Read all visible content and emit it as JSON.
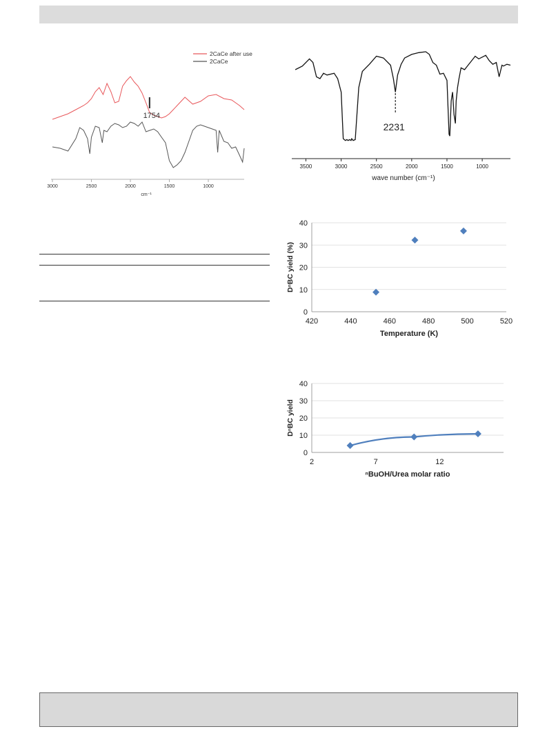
{
  "chart_data": [
    {
      "type": "line",
      "panel": "ftir-catalyst",
      "series": [
        {
          "name": "2CaCe after use",
          "color": "#e8575a",
          "x": [
            3000,
            2900,
            2800,
            2700,
            2600,
            2550,
            2500,
            2450,
            2400,
            2350,
            2300,
            2250,
            2200,
            2150,
            2100,
            2050,
            2000,
            1950,
            1900,
            1850,
            1800,
            1754,
            1700,
            1650,
            1600,
            1550,
            1500,
            1450,
            1400,
            1300,
            1200,
            1100,
            1000,
            900,
            800,
            700,
            600,
            540
          ],
          "y": [
            4.6,
            4.8,
            5.0,
            5.3,
            5.6,
            5.8,
            6.1,
            6.6,
            6.9,
            6.4,
            7.2,
            6.6,
            5.8,
            5.9,
            7.0,
            7.4,
            7.7,
            7.3,
            7.0,
            6.5,
            5.8,
            5.1,
            4.9,
            4.8,
            4.7,
            4.8,
            5.0,
            5.3,
            5.6,
            6.2,
            5.7,
            5.9,
            6.3,
            6.4,
            6.1,
            6.0,
            5.6,
            5.3
          ]
        },
        {
          "name": "2CaCe",
          "color": "#555555",
          "x": [
            3000,
            2900,
            2800,
            2700,
            2650,
            2600,
            2550,
            2520,
            2500,
            2450,
            2400,
            2360,
            2340,
            2300,
            2250,
            2200,
            2150,
            2100,
            2050,
            2000,
            1950,
            1900,
            1850,
            1800,
            1750,
            1700,
            1650,
            1600,
            1550,
            1500,
            1450,
            1400,
            1350,
            1300,
            1250,
            1200,
            1150,
            1100,
            1050,
            1000,
            950,
            900,
            880,
            860,
            800,
            750,
            700,
            650,
            600,
            560,
            540
          ],
          "y": [
            2.6,
            2.5,
            2.3,
            3.2,
            4.0,
            3.8,
            3.2,
            2.1,
            3.3,
            4.1,
            4.0,
            2.9,
            3.8,
            3.7,
            4.1,
            4.3,
            4.2,
            4.0,
            4.1,
            4.4,
            4.3,
            4.1,
            4.4,
            3.7,
            3.8,
            3.9,
            3.7,
            3.3,
            2.9,
            1.6,
            1.1,
            1.3,
            1.6,
            2.2,
            3.0,
            3.8,
            4.1,
            4.2,
            4.1,
            4.0,
            3.9,
            3.8,
            2.2,
            3.8,
            3.0,
            2.9,
            2.5,
            2.6,
            2.0,
            1.5,
            2.5
          ]
        }
      ],
      "annotations": [
        {
          "text": "1754",
          "x": 1754
        }
      ],
      "xlabel": "cm⁻¹",
      "xticks": [
        3000,
        2500,
        2000,
        1500,
        1000
      ],
      "xlim": [
        3000,
        540
      ],
      "legend_position": "top-right"
    },
    {
      "type": "line",
      "panel": "ftir-2231",
      "series": [
        {
          "color": "#111111",
          "x": [
            3650,
            3550,
            3450,
            3400,
            3350,
            3300,
            3250,
            3200,
            3100,
            3050,
            3000,
            2970,
            2940,
            2920,
            2900,
            2880,
            2860,
            2850,
            2830,
            2800,
            2750,
            2700,
            2600,
            2500,
            2400,
            2300,
            2260,
            2231,
            2200,
            2150,
            2100,
            2000,
            1900,
            1800,
            1750,
            1700,
            1650,
            1600,
            1550,
            1500,
            1470,
            1460,
            1440,
            1420,
            1400,
            1380,
            1370,
            1350,
            1330,
            1300,
            1250,
            1200,
            1150,
            1100,
            1050,
            1000,
            950,
            900,
            850,
            800,
            760,
            720,
            700,
            650,
            600
          ],
          "y": [
            80,
            84,
            92,
            88,
            72,
            70,
            76,
            74,
            76,
            70,
            55,
            3,
            1,
            2,
            1,
            2,
            1,
            3,
            1,
            2,
            60,
            78,
            86,
            95,
            93,
            85,
            70,
            55,
            74,
            86,
            93,
            97,
            99,
            100,
            97,
            88,
            85,
            75,
            76,
            68,
            8,
            6,
            45,
            55,
            30,
            20,
            45,
            60,
            70,
            82,
            80,
            85,
            90,
            95,
            92,
            94,
            96,
            90,
            86,
            88,
            72,
            85,
            84,
            86,
            85
          ]
        }
      ],
      "annotations": [
        {
          "text": "2231",
          "x": 2231
        }
      ],
      "xlabel": "wave number (cm⁻¹)",
      "xticks": [
        3500,
        3000,
        2500,
        2000,
        1500,
        1000
      ],
      "xlim": [
        3700,
        600
      ],
      "ylim": [
        0,
        100
      ]
    },
    {
      "type": "scatter",
      "panel": "yield-vs-temperature",
      "series": [
        {
          "color": "#4f7fbd",
          "x": [
            453,
            473,
            498
          ],
          "y": [
            8.8,
            32.2,
            36.3
          ]
        }
      ],
      "xlabel": "Temperature (K)",
      "ylabel": "DⁿBC yield (%)",
      "xlim": [
        420,
        520
      ],
      "ylim": [
        0,
        40
      ],
      "xticks": [
        420,
        440,
        460,
        480,
        500,
        520
      ],
      "yticks": [
        0,
        10,
        20,
        30,
        40
      ],
      "grid": "y-major"
    },
    {
      "type": "line",
      "panel": "yield-vs-molar-ratio",
      "series": [
        {
          "color": "#4f7fbd",
          "x": [
            5,
            10,
            15
          ],
          "y": [
            4.0,
            9.0,
            10.8
          ]
        }
      ],
      "xlabel": "ⁿBuOH/Urea molar ratio",
      "ylabel": "DⁿBC yield",
      "xlim": [
        2,
        17
      ],
      "ylim": [
        0,
        40
      ],
      "xticks": [
        2,
        7,
        12
      ],
      "yticks": [
        0,
        10,
        20,
        30,
        40
      ],
      "grid": "y-major"
    }
  ]
}
